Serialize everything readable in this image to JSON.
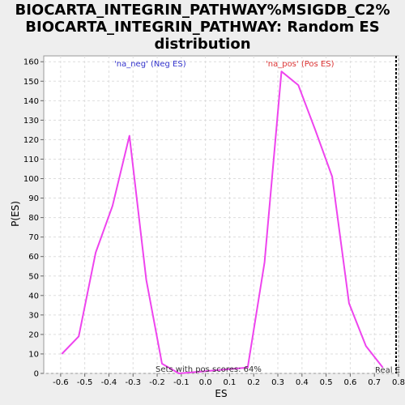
{
  "chart_data": {
    "type": "line",
    "title_lines": [
      "BIOCARTA_INTEGRIN_PATHWAY%MSIGDB_C2%",
      "BIOCARTA_INTEGRIN_PATHWAY: Random ES",
      "distribution"
    ],
    "xlabel": "ES",
    "ylabel": "P(ES)",
    "xlim": [
      -0.67,
      0.8
    ],
    "ylim": [
      0,
      163
    ],
    "xticks": [
      -0.6,
      -0.5,
      -0.4,
      -0.3,
      -0.2,
      -0.1,
      0.0,
      0.1,
      0.2,
      0.3,
      0.4,
      0.5,
      0.6,
      0.7,
      0.8
    ],
    "xtick_labels": [
      "-0.6",
      "-0.5",
      "-0.4",
      "-0.3",
      "-0.2",
      "-0.1",
      "0.0",
      "0.1",
      "0.2",
      "0.3",
      "0.4",
      "0.5",
      "0.6",
      "0.7",
      "0.8"
    ],
    "yticks": [
      0,
      10,
      20,
      30,
      40,
      50,
      60,
      70,
      80,
      90,
      100,
      110,
      120,
      130,
      140,
      150,
      160
    ],
    "ytick_labels": [
      "0",
      "10",
      "20",
      "30",
      "40",
      "50",
      "60",
      "70",
      "80",
      "90",
      "100",
      "110",
      "120",
      "130",
      "140",
      "150",
      "160"
    ],
    "grid": true,
    "series": [
      {
        "color": "#ee44ee",
        "points": [
          [
            -0.595,
            10
          ],
          [
            -0.525,
            19
          ],
          [
            -0.455,
            62
          ],
          [
            -0.385,
            86
          ],
          [
            -0.315,
            122
          ],
          [
            -0.245,
            48
          ],
          [
            -0.18,
            5
          ],
          [
            -0.11,
            0
          ],
          [
            0.175,
            3
          ],
          [
            0.245,
            57
          ],
          [
            0.315,
            155
          ],
          [
            0.385,
            148
          ],
          [
            0.455,
            125
          ],
          [
            0.525,
            101
          ],
          [
            0.595,
            36
          ],
          [
            0.665,
            14
          ],
          [
            0.735,
            3
          ]
        ]
      }
    ],
    "annotations": {
      "neg_label": "'na_neg' (Neg ES)",
      "neg_color": "#3333cc",
      "pos_label": "'na_pos' (Pos ES)",
      "pos_color": "#dd3333",
      "pos_scores": "Sets with pos scores: 64%",
      "real_es_label": "Real E",
      "real_es_x": 0.79
    }
  }
}
